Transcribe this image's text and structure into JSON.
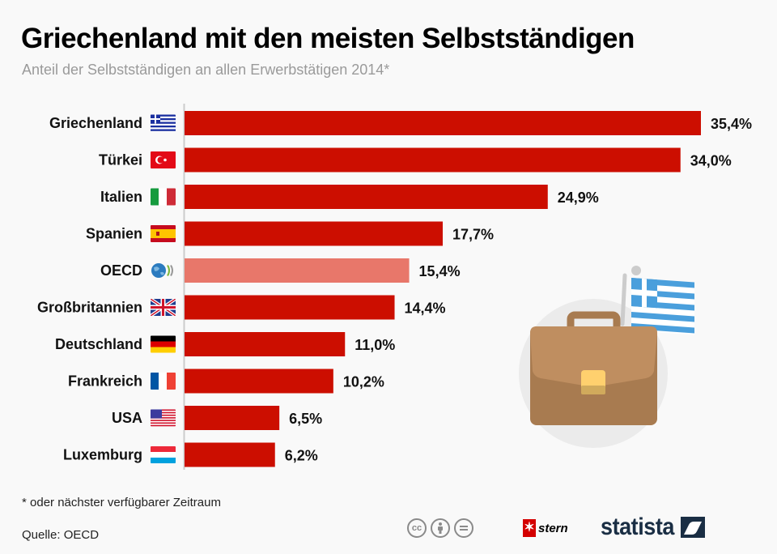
{
  "header": {
    "title": "Griechenland mit den meisten Selbstständigen",
    "subtitle": "Anteil der Selbstständigen an allen Erwerbstätigen 2014*"
  },
  "chart_data": {
    "type": "bar",
    "orientation": "horizontal",
    "title": "Griechenland mit den meisten Selbstständigen",
    "subtitle": "Anteil der Selbstständigen an allen Erwerbstätigen 2014*",
    "xlabel": "",
    "ylabel": "",
    "unit": "%",
    "xlim": [
      0,
      35.4
    ],
    "grid": false,
    "categories": [
      "Griechenland",
      "Türkei",
      "Italien",
      "Spanien",
      "OECD",
      "Großbritannien",
      "Deutschland",
      "Frankreich",
      "USA",
      "Luxemburg"
    ],
    "values": [
      35.4,
      34.0,
      24.9,
      17.7,
      15.4,
      14.4,
      11.0,
      10.2,
      6.5,
      6.2
    ],
    "value_labels": [
      "35,4%",
      "34,0%",
      "24,9%",
      "17,7%",
      "15,4%",
      "14,4%",
      "11,0%",
      "10,2%",
      "6,5%",
      "6,2%"
    ],
    "flags": [
      "greece-flag",
      "turkey-flag",
      "italy-flag",
      "spain-flag",
      "oecd-logo",
      "uk-flag",
      "germany-flag",
      "france-flag",
      "usa-flag",
      "luxembourg-flag"
    ],
    "highlight": "OECD",
    "colors": {
      "bar": "#cc0e00",
      "highlight": "#e8776a",
      "axis": "#cccccc"
    }
  },
  "footer": {
    "footnote": "* oder nächster verfügbarer Zeitraum",
    "source": "Quelle: OECD",
    "license_icons": [
      "cc-icon",
      "attribution-icon",
      "no-derivatives-icon"
    ],
    "cc_label": "cc",
    "partner": "stern",
    "brand": "statista"
  }
}
